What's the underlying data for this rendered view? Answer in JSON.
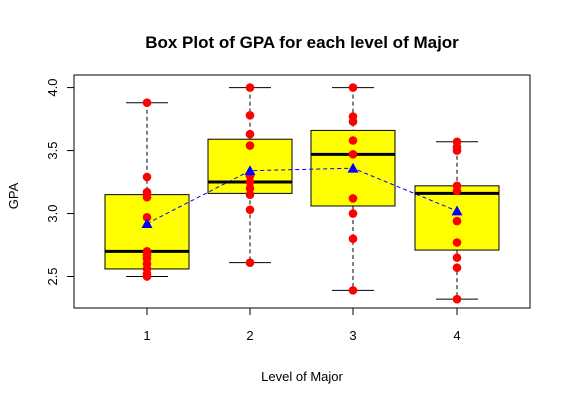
{
  "chart_data": {
    "type": "box",
    "title": "Box Plot of GPA for each level of Major",
    "xlabel": "Level of Major",
    "ylabel": "GPA",
    "categories": [
      "1",
      "2",
      "3",
      "4"
    ],
    "ylim": [
      2.25,
      4.1
    ],
    "yticks": [
      "2.5",
      "3.0",
      "3.5",
      "4.0"
    ],
    "grid": false,
    "colors": {
      "box_fill": "#ffff00",
      "points": "#ff0000",
      "means": "#0000ff",
      "mean_line": "#0000ff"
    },
    "boxes": [
      {
        "category": "1",
        "whisker_low": 2.5,
        "q1": 2.56,
        "median": 2.7,
        "q3": 3.15,
        "whisker_high": 3.88,
        "mean": 2.92,
        "points": [
          2.5,
          2.52,
          2.56,
          2.6,
          2.64,
          2.67,
          2.7,
          2.97,
          3.13,
          3.17,
          3.29,
          3.88
        ]
      },
      {
        "category": "2",
        "whisker_low": 2.61,
        "q1": 3.16,
        "median": 3.25,
        "q3": 3.59,
        "whisker_high": 4.0,
        "mean": 3.34,
        "points": [
          2.61,
          3.03,
          3.15,
          3.2,
          3.25,
          3.3,
          3.54,
          3.63,
          3.78,
          4.0
        ]
      },
      {
        "category": "3",
        "whisker_low": 2.39,
        "q1": 3.06,
        "median": 3.47,
        "q3": 3.66,
        "whisker_high": 4.0,
        "mean": 3.36,
        "points": [
          2.39,
          2.8,
          3.0,
          3.12,
          3.47,
          3.58,
          3.73,
          3.77,
          4.0
        ]
      },
      {
        "category": "4",
        "whisker_low": 2.32,
        "q1": 2.71,
        "median": 3.16,
        "q3": 3.22,
        "whisker_high": 3.57,
        "mean": 3.02,
        "points": [
          2.32,
          2.57,
          2.65,
          2.77,
          2.94,
          3.18,
          3.22,
          3.5,
          3.53,
          3.57
        ]
      }
    ]
  }
}
